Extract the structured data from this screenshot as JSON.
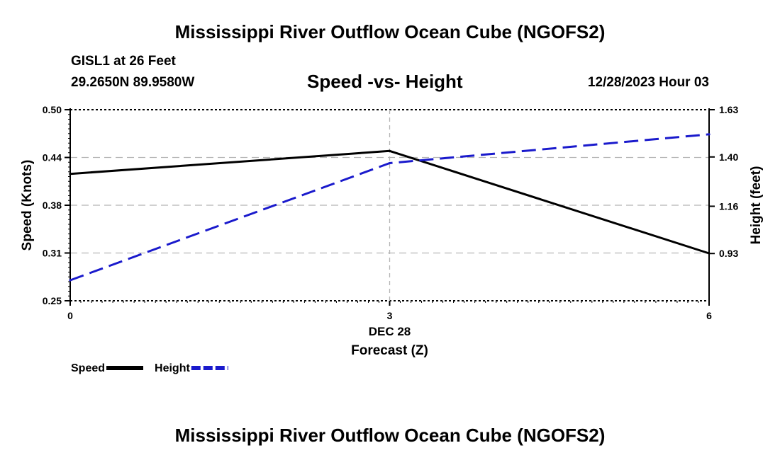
{
  "header": {
    "main_title": "Mississippi River Outflow Ocean Cube (NGOFS2)",
    "station": "GISL1 at 26 Feet",
    "coords": "29.2650N  89.9580W",
    "subtitle": "Speed -vs- Height",
    "date": "12/28/2023 Hour 03"
  },
  "footer": {
    "title": "Mississippi River Outflow Ocean Cube (NGOFS2)"
  },
  "chart_data": {
    "type": "line",
    "title": "Speed -vs- Height",
    "x": [
      0,
      3,
      6
    ],
    "x_ticks": [
      "0",
      "3",
      "6"
    ],
    "x_day_label": "DEC 28",
    "xlabel": "Forecast (Z)",
    "xlim": [
      0,
      6
    ],
    "ylabel_left": "Speed (Knots)",
    "ylim_left": [
      0.25,
      0.5
    ],
    "y_ticks_left": [
      "0.50",
      "0.44",
      "0.38",
      "0.31",
      "0.25"
    ],
    "ylabel_right": "Height (feet)",
    "ylim_right": [
      0.7,
      1.63
    ],
    "y_ticks_right": [
      "1.63",
      "1.40",
      "1.16",
      "0.93"
    ],
    "y_tick_values_right": [
      1.63,
      1.4,
      1.16,
      0.93
    ],
    "grid": true,
    "legend_position": "bottom-left",
    "series": [
      {
        "name": "Speed",
        "axis": "left",
        "color": "#000000",
        "style": "solid",
        "values": [
          0.416,
          0.446,
          0.312
        ]
      },
      {
        "name": "Height",
        "axis": "right",
        "color": "#1a1acc",
        "style": "dashed",
        "values": [
          0.8,
          1.37,
          1.51
        ]
      }
    ]
  }
}
